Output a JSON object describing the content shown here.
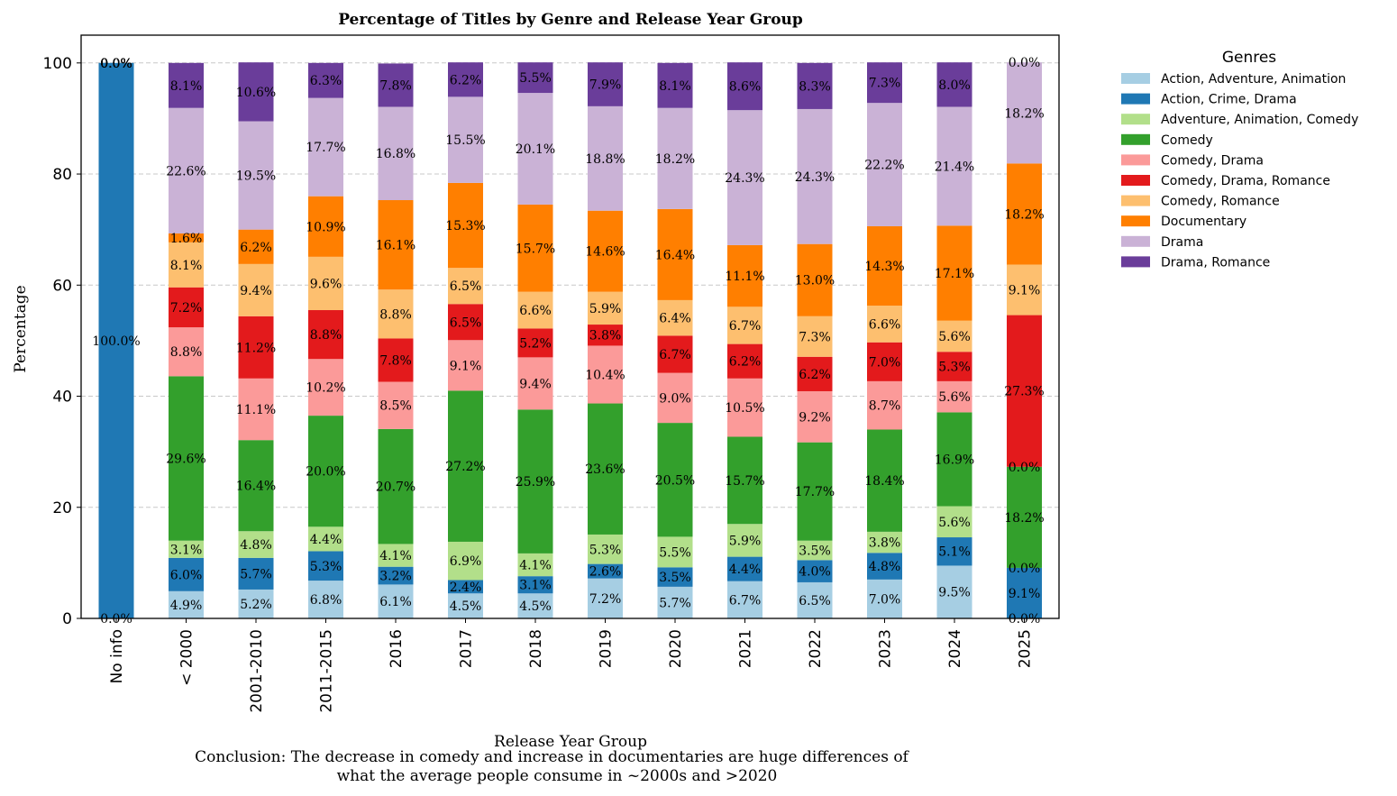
{
  "chart_data": {
    "type": "bar",
    "stacked": true,
    "title": "Percentage of Titles by Genre and Release Year Group",
    "xlabel": "Release Year Group",
    "ylabel": "Percentage",
    "ylim": [
      0,
      105
    ],
    "yticks": [
      0,
      20,
      40,
      60,
      80,
      100
    ],
    "grid": "horizontal-dashed",
    "legend_title": "Genres",
    "legend_position": "outside-top-right",
    "categories": [
      "No info",
      "< 2000",
      "2001-2010",
      "2011-2015",
      "2016",
      "2017",
      "2018",
      "2019",
      "2020",
      "2021",
      "2022",
      "2023",
      "2024",
      "2025"
    ],
    "series": [
      {
        "name": "Action, Adventure, Animation",
        "color": "#a6cee3",
        "values": [
          0.0,
          4.9,
          5.2,
          6.8,
          6.1,
          4.5,
          4.5,
          7.2,
          5.7,
          6.7,
          6.5,
          7.0,
          9.5,
          0.0
        ]
      },
      {
        "name": "Action, Crime, Drama",
        "color": "#1f78b4",
        "values": [
          100.0,
          6.0,
          5.7,
          5.3,
          3.2,
          2.4,
          3.1,
          2.6,
          3.5,
          4.4,
          4.0,
          4.8,
          5.1,
          9.1
        ]
      },
      {
        "name": "Adventure, Animation, Comedy",
        "color": "#b2df8a",
        "values": [
          0.0,
          3.1,
          4.8,
          4.4,
          4.1,
          6.9,
          4.1,
          5.3,
          5.5,
          5.9,
          3.5,
          3.8,
          5.6,
          0.0
        ]
      },
      {
        "name": "Comedy",
        "color": "#33a02c",
        "values": [
          0.0,
          29.6,
          16.4,
          20.0,
          20.7,
          27.2,
          25.9,
          23.6,
          20.5,
          15.7,
          17.7,
          18.4,
          16.9,
          18.2
        ]
      },
      {
        "name": "Comedy, Drama",
        "color": "#fb9a99",
        "values": [
          0.0,
          8.8,
          11.1,
          10.2,
          8.5,
          9.1,
          9.4,
          10.4,
          9.0,
          10.5,
          9.2,
          8.7,
          5.6,
          0.0
        ]
      },
      {
        "name": "Comedy, Drama, Romance",
        "color": "#e31a1c",
        "values": [
          0.0,
          7.2,
          11.2,
          8.8,
          7.8,
          6.5,
          5.2,
          3.8,
          6.7,
          6.2,
          6.2,
          7.0,
          5.3,
          27.3
        ]
      },
      {
        "name": "Comedy, Romance",
        "color": "#fdbf6f",
        "values": [
          0.0,
          8.1,
          9.4,
          9.6,
          8.8,
          6.5,
          6.6,
          5.9,
          6.4,
          6.7,
          7.3,
          6.6,
          5.6,
          9.1
        ]
      },
      {
        "name": "Documentary",
        "color": "#ff7f00",
        "values": [
          0.0,
          1.6,
          6.2,
          10.9,
          16.1,
          15.3,
          15.7,
          14.6,
          16.4,
          11.1,
          13.0,
          14.3,
          17.1,
          18.2
        ]
      },
      {
        "name": "Drama",
        "color": "#cab2d6",
        "values": [
          0.0,
          22.6,
          19.5,
          17.7,
          16.8,
          15.5,
          20.1,
          18.8,
          18.2,
          24.3,
          24.3,
          22.2,
          21.4,
          18.2
        ]
      },
      {
        "name": "Drama, Romance",
        "color": "#6a3d9a",
        "values": [
          0.0,
          8.1,
          10.6,
          6.3,
          7.8,
          6.2,
          5.5,
          7.9,
          8.1,
          8.6,
          8.3,
          7.3,
          8.0,
          0.0
        ]
      }
    ],
    "zero_label_columns": [
      0,
      13
    ],
    "conclusion": [
      "Conclusion: The decrease in comedy and increase in documentaries are huge differences of",
      "what the average people consume in ~2000s and >2020"
    ]
  }
}
